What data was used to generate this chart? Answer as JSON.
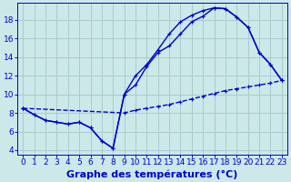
{
  "title": "Graphe des températures (°C)",
  "bg_color": "#cce8e8",
  "grid_color": "#aacccc",
  "line_color": "#0000cc",
  "x_ticks": [
    0,
    1,
    2,
    3,
    4,
    5,
    6,
    7,
    8,
    9,
    10,
    11,
    12,
    13,
    14,
    15,
    16,
    17,
    18,
    19,
    20,
    21,
    22,
    23
  ],
  "y_ticks": [
    4,
    6,
    8,
    10,
    12,
    14,
    16,
    18
  ],
  "ylim": [
    3.5,
    19.8
  ],
  "xlim": [
    -0.5,
    23.5
  ],
  "curve1_x": [
    0,
    1,
    2,
    3,
    4,
    5,
    6,
    7,
    8,
    9,
    10,
    11,
    12,
    13,
    14,
    15,
    16,
    17,
    18,
    19,
    20,
    21,
    22,
    23
  ],
  "curve1_y": [
    8.5,
    7.8,
    7.2,
    7.0,
    6.8,
    7.0,
    6.4,
    5.0,
    4.2,
    10.0,
    11.0,
    13.0,
    14.5,
    15.2,
    16.5,
    17.8,
    18.4,
    19.3,
    19.2,
    18.3,
    17.2,
    14.5,
    13.2,
    11.5
  ],
  "curve2_x": [
    0,
    1,
    2,
    3,
    4,
    5,
    6,
    7,
    8,
    9,
    10,
    11,
    12,
    13,
    14,
    15,
    16,
    17,
    18,
    19,
    20,
    21,
    22,
    23
  ],
  "curve2_y": [
    8.5,
    7.8,
    7.2,
    7.0,
    6.8,
    7.0,
    6.4,
    5.0,
    4.2,
    10.0,
    12.0,
    13.2,
    14.8,
    16.5,
    17.8,
    18.5,
    19.0,
    19.3,
    19.2,
    18.3,
    17.2,
    14.5,
    13.2,
    11.5
  ],
  "curve3_x": [
    0,
    9,
    10,
    11,
    12,
    13,
    14,
    15,
    16,
    17,
    18,
    19,
    20,
    21,
    22,
    23
  ],
  "curve3_y": [
    8.5,
    8.0,
    8.3,
    8.5,
    8.7,
    8.9,
    9.2,
    9.5,
    9.8,
    10.1,
    10.4,
    10.6,
    10.8,
    11.0,
    11.2,
    11.5
  ],
  "xlabel_fontsize": 8,
  "tick_fontsize": 6.5,
  "lw": 1.0
}
